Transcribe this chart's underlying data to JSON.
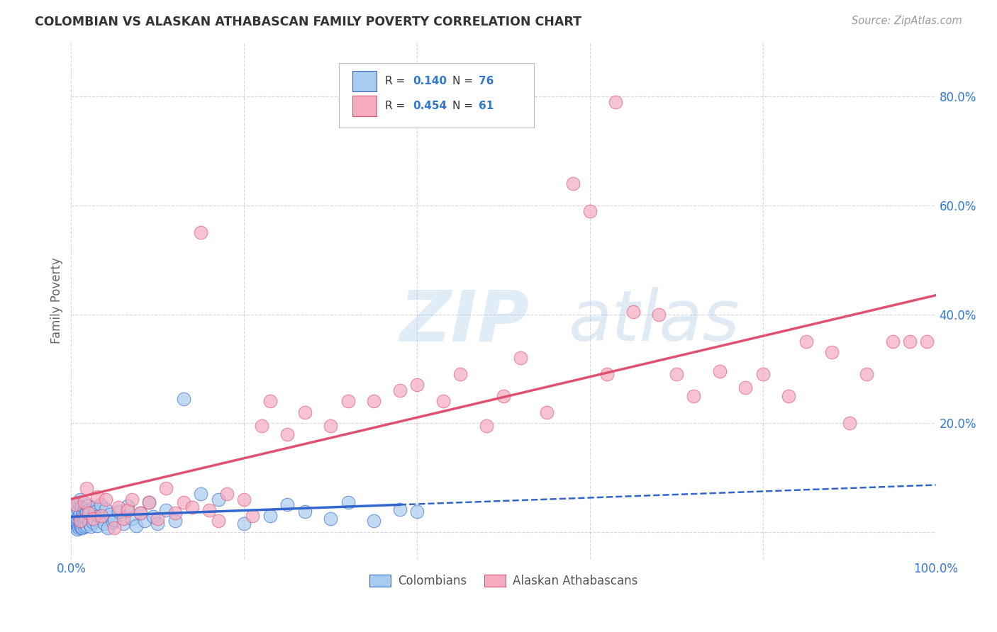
{
  "title": "COLOMBIAN VS ALASKAN ATHABASCAN FAMILY POVERTY CORRELATION CHART",
  "source": "Source: ZipAtlas.com",
  "ylabel": "Family Poverty",
  "ytick_labels": [
    "",
    "20.0%",
    "40.0%",
    "60.0%",
    "80.0%"
  ],
  "ytick_values": [
    0.0,
    0.2,
    0.4,
    0.6,
    0.8
  ],
  "xlim": [
    0.0,
    1.0
  ],
  "ylim": [
    -0.05,
    0.9
  ],
  "blue_R": "0.140",
  "blue_N": "76",
  "pink_R": "0.454",
  "pink_N": "61",
  "blue_color": "#A8CCEF",
  "pink_color": "#F5AABF",
  "blue_line_color": "#3366CC",
  "pink_line_color": "#E05070",
  "background_color": "#FFFFFF",
  "grid_color": "#BBBBCC",
  "legend_label_blue": "Colombians",
  "legend_label_pink": "Alaskan Athabascans",
  "colombians_x": [
    0.005,
    0.005,
    0.005,
    0.007,
    0.007,
    0.007,
    0.008,
    0.008,
    0.008,
    0.009,
    0.009,
    0.01,
    0.01,
    0.01,
    0.01,
    0.011,
    0.011,
    0.012,
    0.012,
    0.013,
    0.013,
    0.014,
    0.014,
    0.015,
    0.015,
    0.015,
    0.016,
    0.016,
    0.017,
    0.018,
    0.018,
    0.019,
    0.02,
    0.02,
    0.021,
    0.022,
    0.023,
    0.024,
    0.025,
    0.026,
    0.027,
    0.028,
    0.03,
    0.032,
    0.034,
    0.036,
    0.038,
    0.04,
    0.042,
    0.045,
    0.048,
    0.05,
    0.055,
    0.06,
    0.065,
    0.07,
    0.075,
    0.08,
    0.085,
    0.09,
    0.095,
    0.1,
    0.11,
    0.12,
    0.13,
    0.15,
    0.17,
    0.2,
    0.23,
    0.25,
    0.27,
    0.3,
    0.32,
    0.35,
    0.38,
    0.4
  ],
  "colombians_y": [
    0.02,
    0.035,
    0.05,
    0.005,
    0.015,
    0.025,
    0.01,
    0.04,
    0.055,
    0.008,
    0.03,
    0.01,
    0.02,
    0.035,
    0.06,
    0.012,
    0.025,
    0.015,
    0.045,
    0.008,
    0.03,
    0.018,
    0.038,
    0.01,
    0.022,
    0.042,
    0.015,
    0.032,
    0.025,
    0.012,
    0.038,
    0.048,
    0.02,
    0.04,
    0.015,
    0.035,
    0.01,
    0.028,
    0.018,
    0.045,
    0.022,
    0.038,
    0.012,
    0.03,
    0.05,
    0.025,
    0.015,
    0.042,
    0.008,
    0.032,
    0.018,
    0.022,
    0.038,
    0.015,
    0.048,
    0.025,
    0.012,
    0.035,
    0.02,
    0.055,
    0.028,
    0.015,
    0.04,
    0.02,
    0.245,
    0.07,
    0.06,
    0.015,
    0.03,
    0.05,
    0.038,
    0.025,
    0.055,
    0.02,
    0.042,
    0.038
  ],
  "athabascan_x": [
    0.005,
    0.01,
    0.015,
    0.018,
    0.02,
    0.025,
    0.03,
    0.035,
    0.04,
    0.05,
    0.055,
    0.06,
    0.065,
    0.07,
    0.08,
    0.09,
    0.1,
    0.11,
    0.12,
    0.13,
    0.14,
    0.15,
    0.16,
    0.17,
    0.18,
    0.2,
    0.21,
    0.22,
    0.23,
    0.25,
    0.27,
    0.3,
    0.32,
    0.35,
    0.38,
    0.4,
    0.43,
    0.45,
    0.48,
    0.5,
    0.52,
    0.55,
    0.58,
    0.6,
    0.62,
    0.65,
    0.68,
    0.7,
    0.72,
    0.75,
    0.78,
    0.8,
    0.83,
    0.85,
    0.88,
    0.9,
    0.92,
    0.95,
    0.97,
    0.99,
    0.63
  ],
  "athabascan_y": [
    0.05,
    0.02,
    0.055,
    0.08,
    0.035,
    0.025,
    0.065,
    0.03,
    0.06,
    0.008,
    0.045,
    0.025,
    0.04,
    0.06,
    0.035,
    0.055,
    0.025,
    0.08,
    0.035,
    0.055,
    0.045,
    0.55,
    0.04,
    0.02,
    0.07,
    0.06,
    0.03,
    0.195,
    0.24,
    0.18,
    0.22,
    0.195,
    0.24,
    0.24,
    0.26,
    0.27,
    0.24,
    0.29,
    0.195,
    0.25,
    0.32,
    0.22,
    0.64,
    0.59,
    0.29,
    0.405,
    0.4,
    0.29,
    0.25,
    0.295,
    0.265,
    0.29,
    0.25,
    0.35,
    0.33,
    0.2,
    0.29,
    0.35,
    0.35,
    0.35,
    0.79
  ]
}
